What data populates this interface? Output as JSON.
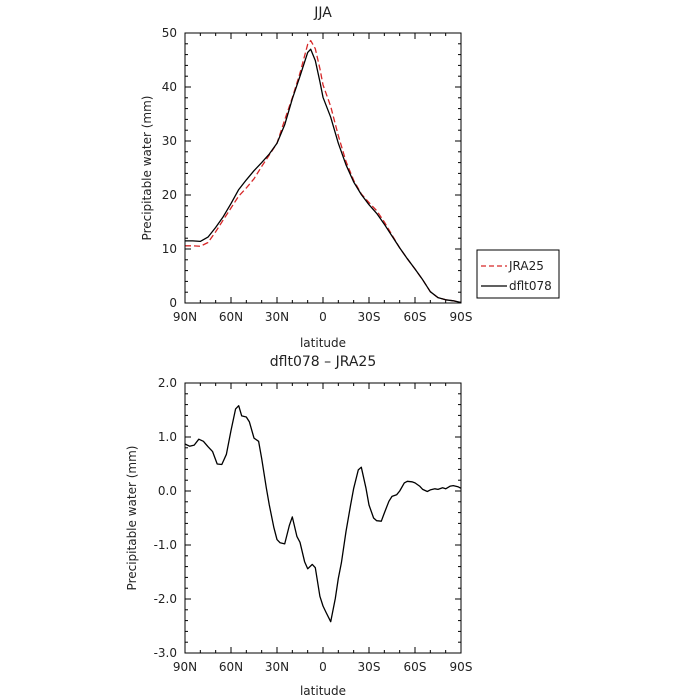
{
  "chart_data": [
    {
      "type": "line",
      "title": "JJA",
      "xlabel": "latitude",
      "ylabel": "Precipitable water  (mm)",
      "xlim": [
        90,
        -90
      ],
      "ylim": [
        0,
        50
      ],
      "x_ticks": [
        90,
        60,
        30,
        0,
        -30,
        -60,
        -90
      ],
      "x_tick_labels": [
        "90N",
        "60N",
        "30N",
        "0",
        "30S",
        "60S",
        "90S"
      ],
      "y_ticks": [
        0,
        10,
        20,
        30,
        40,
        50
      ],
      "y_tick_labels": [
        "0",
        "10",
        "20",
        "30",
        "40",
        "50"
      ],
      "legend": {
        "placement": "right, outside",
        "entries": [
          "JRA25",
          "dflt078"
        ]
      },
      "series": [
        {
          "name": "JRA25",
          "color": "#d62728",
          "dash": "dashed",
          "x": [
            90,
            85,
            80,
            75,
            70,
            65,
            60,
            55,
            50,
            45,
            40,
            35,
            30,
            25,
            20,
            15,
            10,
            8,
            5,
            2,
            0,
            -5,
            -10,
            -15,
            -20,
            -25,
            -30,
            -35,
            -40,
            -45,
            -50,
            -55,
            -60,
            -65,
            -70,
            -75,
            -80,
            -85,
            -90
          ],
          "values": [
            10.6,
            10.6,
            10.5,
            11.2,
            13.2,
            15.4,
            17.6,
            19.8,
            21.3,
            23.0,
            25.3,
            27.4,
            29.6,
            33.9,
            38.0,
            42.6,
            47.9,
            48.6,
            47.1,
            43.4,
            40.4,
            36.4,
            31.0,
            26.2,
            22.7,
            20.2,
            18.6,
            17.1,
            15.0,
            12.6,
            10.2,
            8.2,
            6.3,
            4.3,
            2.1,
            1.0,
            0.6,
            0.4,
            0.1
          ]
        },
        {
          "name": "dflt078",
          "color": "#000000",
          "dash": "solid",
          "x": [
            90,
            85,
            80,
            75,
            70,
            65,
            60,
            55,
            50,
            45,
            40,
            35,
            30,
            25,
            20,
            15,
            10,
            8,
            5,
            2,
            0,
            -5,
            -10,
            -15,
            -20,
            -25,
            -30,
            -35,
            -40,
            -45,
            -50,
            -55,
            -60,
            -65,
            -70,
            -75,
            -80,
            -85,
            -90
          ],
          "values": [
            11.5,
            11.5,
            11.4,
            12.2,
            14.0,
            16.0,
            18.4,
            21.0,
            22.8,
            24.5,
            26.0,
            27.6,
            29.6,
            33.0,
            37.8,
            42.0,
            46.4,
            47.0,
            44.9,
            41.0,
            38.1,
            34.4,
            29.6,
            25.6,
            22.4,
            20.1,
            18.2,
            16.6,
            14.6,
            12.4,
            10.2,
            8.2,
            6.3,
            4.3,
            2.1,
            1.0,
            0.6,
            0.4,
            0.1
          ]
        }
      ]
    },
    {
      "type": "line",
      "title": "dflt078  –  JRA25",
      "xlabel": "latitude",
      "ylabel": "Precipitable water  (mm)",
      "xlim": [
        90,
        -90
      ],
      "ylim": [
        -3.0,
        2.0
      ],
      "x_ticks": [
        90,
        60,
        30,
        0,
        -30,
        -60,
        -90
      ],
      "x_tick_labels": [
        "90N",
        "60N",
        "30N",
        "0",
        "30S",
        "60S",
        "90S"
      ],
      "y_ticks": [
        2.0,
        1.0,
        0.0,
        -1.0,
        -2.0,
        -3.0
      ],
      "y_tick_labels": [
        "2.0",
        "1.0",
        "0.0",
        "-1.0",
        "-2.0",
        "-3.0"
      ],
      "series": [
        {
          "color": "#000000",
          "dash": "solid",
          "x": [
            90,
            87,
            84,
            81,
            78,
            75,
            72,
            69,
            66,
            63,
            60,
            57,
            55,
            53,
            50,
            48,
            45,
            42,
            40,
            37,
            35,
            32,
            30,
            28,
            25,
            22,
            20,
            17,
            15,
            12,
            10,
            7,
            5,
            2,
            0,
            -2,
            -5,
            -8,
            -10,
            -12,
            -15,
            -18,
            -20,
            -23,
            -25,
            -28,
            -30,
            -33,
            -35,
            -38,
            -40,
            -43,
            -45,
            -48,
            -50,
            -53,
            -55,
            -58,
            -60,
            -63,
            -65,
            -68,
            -70,
            -73,
            -75,
            -78,
            -80,
            -83,
            -85,
            -88,
            -90
          ],
          "values": [
            0.87,
            0.83,
            0.85,
            0.96,
            0.92,
            0.82,
            0.73,
            0.5,
            0.49,
            0.68,
            1.12,
            1.52,
            1.58,
            1.39,
            1.37,
            1.28,
            0.98,
            0.92,
            0.6,
            0.06,
            -0.26,
            -0.68,
            -0.9,
            -0.96,
            -0.98,
            -0.64,
            -0.48,
            -0.84,
            -0.95,
            -1.31,
            -1.44,
            -1.36,
            -1.42,
            -1.95,
            -2.13,
            -2.25,
            -2.42,
            -1.99,
            -1.62,
            -1.33,
            -0.75,
            -0.26,
            0.05,
            0.39,
            0.44,
            0.06,
            -0.26,
            -0.5,
            -0.55,
            -0.56,
            -0.41,
            -0.19,
            -0.1,
            -0.07,
            0.0,
            0.15,
            0.18,
            0.17,
            0.15,
            0.09,
            0.03,
            -0.01,
            0.02,
            0.04,
            0.03,
            0.06,
            0.04,
            0.09,
            0.1,
            0.08,
            0.05
          ]
        }
      ]
    }
  ]
}
